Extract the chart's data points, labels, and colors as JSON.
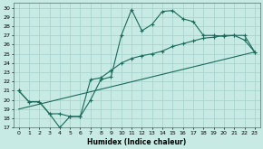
{
  "xlabel": "Humidex (Indice chaleur)",
  "xlim": [
    -0.5,
    23.5
  ],
  "ylim": [
    17,
    30.5
  ],
  "yticks": [
    17,
    18,
    19,
    20,
    21,
    22,
    23,
    24,
    25,
    26,
    27,
    28,
    29,
    30
  ],
  "xticks": [
    0,
    1,
    2,
    3,
    4,
    5,
    6,
    7,
    8,
    9,
    10,
    11,
    12,
    13,
    14,
    15,
    16,
    17,
    18,
    19,
    20,
    21,
    22,
    23
  ],
  "bg_color": "#c8eae4",
  "grid_color": "#aad4ce",
  "line_color": "#1a6b5a",
  "line1_x": [
    0,
    1,
    2,
    3,
    4,
    5,
    6,
    7,
    8,
    9,
    10,
    11,
    12,
    13,
    14,
    15,
    16,
    17,
    18,
    19,
    20,
    21,
    22,
    23
  ],
  "line1_y": [
    21.0,
    19.8,
    19.8,
    18.5,
    17.0,
    18.2,
    18.2,
    20.0,
    22.2,
    22.5,
    27.0,
    29.8,
    27.5,
    28.2,
    29.6,
    29.7,
    28.8,
    28.5,
    27.0,
    27.0,
    26.9,
    27.0,
    27.0,
    25.2
  ],
  "line2_x": [
    0,
    1,
    2,
    3,
    4,
    5,
    6,
    7,
    8,
    9,
    10,
    11,
    12,
    13,
    14,
    15,
    16,
    17,
    18,
    19,
    20,
    21,
    22,
    23
  ],
  "line2_y": [
    21.0,
    19.8,
    19.8,
    18.5,
    18.5,
    18.2,
    18.2,
    22.2,
    22.4,
    23.2,
    24.0,
    24.5,
    24.8,
    25.0,
    25.3,
    25.8,
    26.1,
    26.4,
    26.7,
    26.8,
    27.0,
    27.0,
    26.5,
    25.2
  ],
  "line3_x": [
    0,
    23
  ],
  "line3_y": [
    19.0,
    25.2
  ]
}
